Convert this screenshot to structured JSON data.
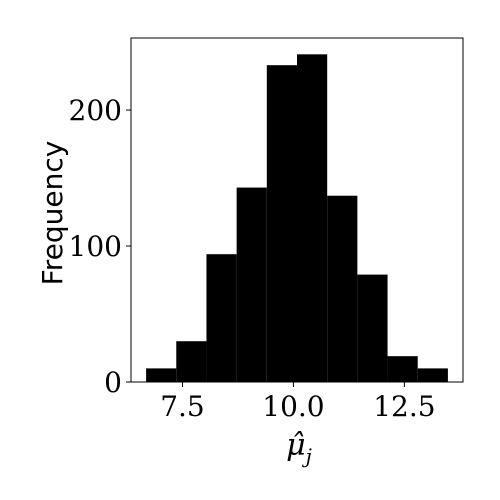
{
  "chart_data": {
    "type": "bar",
    "title": "",
    "xlabel": "μ̂",
    "xlabel_subscript": "j",
    "ylabel": "Frequency",
    "bins": [
      {
        "x0": 6.68,
        "x1": 7.36,
        "value": 10
      },
      {
        "x0": 7.36,
        "x1": 8.04,
        "value": 30
      },
      {
        "x0": 8.04,
        "x1": 8.72,
        "value": 94
      },
      {
        "x0": 8.72,
        "x1": 9.4,
        "value": 143
      },
      {
        "x0": 9.4,
        "x1": 10.08,
        "value": 233
      },
      {
        "x0": 10.08,
        "x1": 10.76,
        "value": 241
      },
      {
        "x0": 10.76,
        "x1": 11.44,
        "value": 137
      },
      {
        "x0": 11.44,
        "x1": 12.12,
        "value": 79
      },
      {
        "x0": 12.12,
        "x1": 12.8,
        "value": 19
      },
      {
        "x0": 12.8,
        "x1": 13.48,
        "value": 10
      }
    ],
    "xlim": [
      6.34,
      13.82
    ],
    "ylim": [
      0,
      253
    ],
    "xticks": [
      {
        "value": 7.5,
        "label": "7.5"
      },
      {
        "value": 10.0,
        "label": "10.0"
      },
      {
        "value": 12.5,
        "label": "12.5"
      }
    ],
    "yticks": [
      {
        "value": 0,
        "label": "0"
      },
      {
        "value": 100,
        "label": "100"
      },
      {
        "value": 200,
        "label": "200"
      }
    ],
    "grid": false,
    "legend": "none",
    "bar_color": "#000000"
  }
}
